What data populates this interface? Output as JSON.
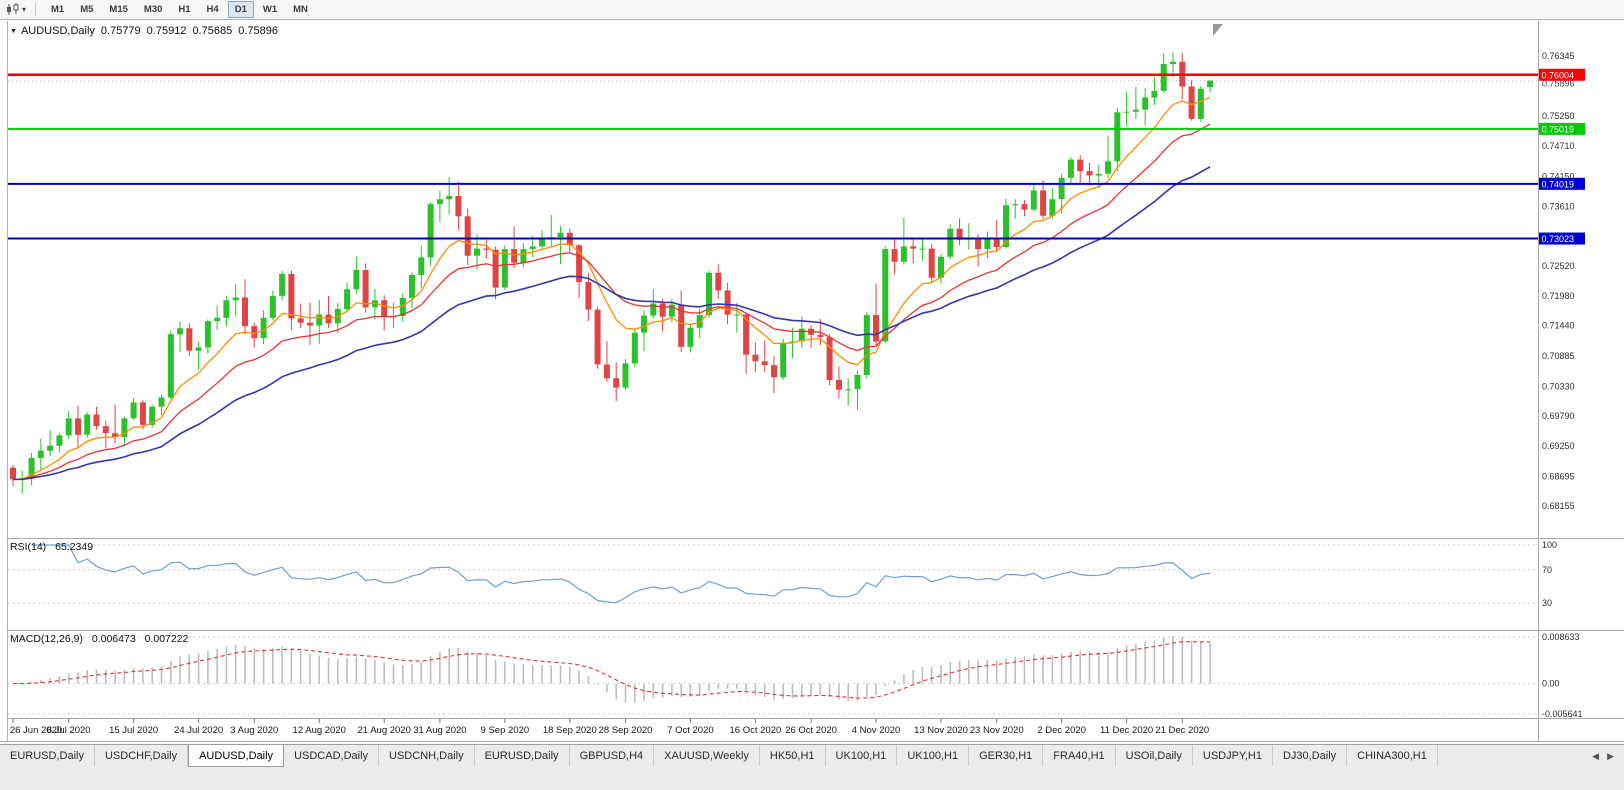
{
  "toolbar": {
    "timeframes": [
      "M1",
      "M5",
      "M15",
      "M30",
      "H1",
      "H4",
      "D1",
      "W1",
      "MN"
    ],
    "active_timeframe": "D1"
  },
  "chart": {
    "title": "AUDUSD,Daily",
    "ohlc": {
      "open": "0.75779",
      "high": "0.75912",
      "low": "0.75685",
      "close": "0.75896"
    },
    "current_price": "0.75896"
  },
  "rsi": {
    "label": "RSI(14)",
    "value": "65.2349"
  },
  "macd": {
    "label": "MACD(12,26,9)",
    "values": [
      "0.006473",
      "0.007222"
    ]
  },
  "chart_data": {
    "type": "candlestick",
    "symbol": "AUDUSD",
    "timeframe": "Daily",
    "y_axis": {
      "min": 0.67591,
      "max": 0.76855,
      "ticks": [
        0.76345,
        0.7525,
        0.7471,
        0.7415,
        0.7361,
        0.7252,
        0.7198,
        0.7144,
        0.70885,
        0.7033,
        0.6979,
        0.6925,
        0.68695,
        0.68155
      ]
    },
    "x_axis": {
      "date_ticks": [
        {
          "i": 0,
          "label": "26 Jun 2020"
        },
        {
          "i": 6,
          "label": "6 Jul 2020"
        },
        {
          "i": 13,
          "label": "15 Jul 2020"
        },
        {
          "i": 20,
          "label": "24 Jul 2020"
        },
        {
          "i": 26,
          "label": "3 Aug 2020"
        },
        {
          "i": 33,
          "label": "12 Aug 2020"
        },
        {
          "i": 40,
          "label": "21 Aug 2020"
        },
        {
          "i": 46,
          "label": "31 Aug 2020"
        },
        {
          "i": 53,
          "label": "9 Sep 2020"
        },
        {
          "i": 60,
          "label": "18 Sep 2020"
        },
        {
          "i": 66,
          "label": "28 Sep 2020"
        },
        {
          "i": 73,
          "label": "7 Oct 2020"
        },
        {
          "i": 80,
          "label": "16 Oct 2020"
        },
        {
          "i": 86,
          "label": "26 Oct 2020"
        },
        {
          "i": 93,
          "label": "4 Nov 2020"
        },
        {
          "i": 100,
          "label": "13 Nov 2020"
        },
        {
          "i": 106,
          "label": "23 Nov 2020"
        },
        {
          "i": 113,
          "label": "2 Dec 2020"
        },
        {
          "i": 120,
          "label": "11 Dec 2020"
        },
        {
          "i": 126,
          "label": "21 Dec 2020"
        }
      ]
    },
    "candles": [
      [
        0.6885,
        0.689,
        0.6852,
        0.6864
      ],
      [
        0.6864,
        0.688,
        0.6838,
        0.6866
      ],
      [
        0.6866,
        0.6912,
        0.6853,
        0.6903
      ],
      [
        0.6903,
        0.6938,
        0.688,
        0.6916
      ],
      [
        0.6916,
        0.6954,
        0.6906,
        0.6925
      ],
      [
        0.6925,
        0.6949,
        0.6913,
        0.6944
      ],
      [
        0.6944,
        0.6988,
        0.6937,
        0.6975
      ],
      [
        0.6975,
        0.6998,
        0.6922,
        0.6945
      ],
      [
        0.6945,
        0.6986,
        0.694,
        0.6982
      ],
      [
        0.6982,
        0.6996,
        0.6954,
        0.6961
      ],
      [
        0.6961,
        0.6971,
        0.692,
        0.6948
      ],
      [
        0.6948,
        0.7,
        0.693,
        0.6941
      ],
      [
        0.6941,
        0.6978,
        0.6924,
        0.6975
      ],
      [
        0.6975,
        0.7012,
        0.6972,
        0.7004
      ],
      [
        0.7004,
        0.7009,
        0.6955,
        0.6963
      ],
      [
        0.6963,
        0.7,
        0.6958,
        0.6996
      ],
      [
        0.6996,
        0.7018,
        0.6981,
        0.7013
      ],
      [
        0.7013,
        0.7135,
        0.701,
        0.7128
      ],
      [
        0.7128,
        0.7152,
        0.7096,
        0.7139
      ],
      [
        0.7139,
        0.7148,
        0.7089,
        0.7098
      ],
      [
        0.7098,
        0.7115,
        0.7063,
        0.7104
      ],
      [
        0.7104,
        0.7155,
        0.7093,
        0.7152
      ],
      [
        0.7152,
        0.718,
        0.7136,
        0.7158
      ],
      [
        0.7158,
        0.7197,
        0.7142,
        0.719
      ],
      [
        0.719,
        0.7219,
        0.7161,
        0.7195
      ],
      [
        0.7195,
        0.7228,
        0.7128,
        0.7143
      ],
      [
        0.7143,
        0.7149,
        0.7104,
        0.7121
      ],
      [
        0.7121,
        0.7172,
        0.711,
        0.7158
      ],
      [
        0.7158,
        0.7208,
        0.7153,
        0.7198
      ],
      [
        0.7198,
        0.7243,
        0.719,
        0.7238
      ],
      [
        0.7238,
        0.7244,
        0.7136,
        0.7157
      ],
      [
        0.7157,
        0.7184,
        0.7139,
        0.7149
      ],
      [
        0.7149,
        0.7185,
        0.7109,
        0.7144
      ],
      [
        0.7144,
        0.7191,
        0.7111,
        0.7164
      ],
      [
        0.7164,
        0.7198,
        0.714,
        0.7148
      ],
      [
        0.7148,
        0.7185,
        0.713,
        0.7174
      ],
      [
        0.7174,
        0.7222,
        0.7168,
        0.721
      ],
      [
        0.721,
        0.7269,
        0.7202,
        0.7245
      ],
      [
        0.7245,
        0.7257,
        0.7167,
        0.7177
      ],
      [
        0.7177,
        0.7211,
        0.7155,
        0.719
      ],
      [
        0.719,
        0.7199,
        0.7135,
        0.716
      ],
      [
        0.716,
        0.7186,
        0.7139,
        0.7161
      ],
      [
        0.7161,
        0.7202,
        0.7151,
        0.7194
      ],
      [
        0.7194,
        0.7241,
        0.7176,
        0.7236
      ],
      [
        0.7236,
        0.729,
        0.7212,
        0.7268
      ],
      [
        0.7268,
        0.7368,
        0.7252,
        0.7365
      ],
      [
        0.7365,
        0.7389,
        0.7332,
        0.7374
      ],
      [
        0.7374,
        0.7414,
        0.7347,
        0.738
      ],
      [
        0.738,
        0.7406,
        0.7318,
        0.7343
      ],
      [
        0.7343,
        0.7357,
        0.7254,
        0.7271
      ],
      [
        0.7271,
        0.731,
        0.7245,
        0.7284
      ],
      [
        0.7284,
        0.73,
        0.7265,
        0.7282
      ],
      [
        0.7282,
        0.7288,
        0.7192,
        0.7213
      ],
      [
        0.7213,
        0.729,
        0.7209,
        0.7283
      ],
      [
        0.7283,
        0.7324,
        0.7248,
        0.7258
      ],
      [
        0.7258,
        0.7294,
        0.725,
        0.7283
      ],
      [
        0.7283,
        0.7307,
        0.7268,
        0.7288
      ],
      [
        0.7288,
        0.7317,
        0.7282,
        0.7304
      ],
      [
        0.7304,
        0.7345,
        0.7286,
        0.7305
      ],
      [
        0.7305,
        0.7325,
        0.7256,
        0.7313
      ],
      [
        0.7313,
        0.732,
        0.7277,
        0.729
      ],
      [
        0.729,
        0.7292,
        0.7194,
        0.7223
      ],
      [
        0.7223,
        0.724,
        0.7152,
        0.7173
      ],
      [
        0.7173,
        0.7177,
        0.7065,
        0.7073
      ],
      [
        0.7073,
        0.7116,
        0.7042,
        0.7048
      ],
      [
        0.7048,
        0.7077,
        0.7006,
        0.7031
      ],
      [
        0.7031,
        0.7083,
        0.7027,
        0.7075
      ],
      [
        0.7075,
        0.7137,
        0.7068,
        0.7131
      ],
      [
        0.7131,
        0.7172,
        0.7097,
        0.7162
      ],
      [
        0.7162,
        0.721,
        0.7157,
        0.7184
      ],
      [
        0.7184,
        0.7192,
        0.7133,
        0.716
      ],
      [
        0.716,
        0.7192,
        0.715,
        0.7182
      ],
      [
        0.7182,
        0.7208,
        0.7096,
        0.7105
      ],
      [
        0.7105,
        0.7146,
        0.7095,
        0.714
      ],
      [
        0.714,
        0.7174,
        0.7121,
        0.7163
      ],
      [
        0.7163,
        0.7243,
        0.7158,
        0.724
      ],
      [
        0.724,
        0.7255,
        0.7193,
        0.7208
      ],
      [
        0.7208,
        0.7222,
        0.7146,
        0.7164
      ],
      [
        0.7164,
        0.7185,
        0.7131,
        0.7164
      ],
      [
        0.7164,
        0.7167,
        0.7056,
        0.7091
      ],
      [
        0.7091,
        0.7113,
        0.706,
        0.7079
      ],
      [
        0.7079,
        0.7117,
        0.7059,
        0.7072
      ],
      [
        0.7072,
        0.7088,
        0.7021,
        0.705
      ],
      [
        0.705,
        0.712,
        0.7045,
        0.7113
      ],
      [
        0.7113,
        0.714,
        0.7085,
        0.7115
      ],
      [
        0.7115,
        0.716,
        0.7103,
        0.7138
      ],
      [
        0.7138,
        0.7145,
        0.7103,
        0.7127
      ],
      [
        0.7127,
        0.7156,
        0.7108,
        0.7123
      ],
      [
        0.7123,
        0.7128,
        0.7035,
        0.7045
      ],
      [
        0.7045,
        0.707,
        0.7011,
        0.7027
      ],
      [
        0.7027,
        0.7048,
        0.6998,
        0.7028
      ],
      [
        0.7028,
        0.7062,
        0.6991,
        0.7054
      ],
      [
        0.7054,
        0.7168,
        0.7048,
        0.7163
      ],
      [
        0.7163,
        0.7221,
        0.7108,
        0.7115
      ],
      [
        0.7115,
        0.7288,
        0.7112,
        0.7283
      ],
      [
        0.7283,
        0.73,
        0.7237,
        0.726
      ],
      [
        0.726,
        0.734,
        0.7255,
        0.7288
      ],
      [
        0.7288,
        0.7302,
        0.7257,
        0.7284
      ],
      [
        0.7284,
        0.7301,
        0.7262,
        0.7284
      ],
      [
        0.7284,
        0.7292,
        0.7221,
        0.7231
      ],
      [
        0.7231,
        0.7274,
        0.722,
        0.7269
      ],
      [
        0.7269,
        0.7328,
        0.7265,
        0.732
      ],
      [
        0.732,
        0.7339,
        0.729,
        0.73
      ],
      [
        0.73,
        0.733,
        0.7282,
        0.7304
      ],
      [
        0.7304,
        0.731,
        0.7251,
        0.7283
      ],
      [
        0.7283,
        0.7315,
        0.7267,
        0.7303
      ],
      [
        0.7303,
        0.7336,
        0.7279,
        0.7287
      ],
      [
        0.7287,
        0.7375,
        0.7284,
        0.7363
      ],
      [
        0.7363,
        0.7374,
        0.7338,
        0.7365
      ],
      [
        0.7365,
        0.7373,
        0.7343,
        0.7355
      ],
      [
        0.7355,
        0.7404,
        0.7352,
        0.739
      ],
      [
        0.739,
        0.7408,
        0.7338,
        0.7344
      ],
      [
        0.7344,
        0.7394,
        0.7338,
        0.7374
      ],
      [
        0.7374,
        0.742,
        0.7348,
        0.7413
      ],
      [
        0.7413,
        0.745,
        0.7401,
        0.7446
      ],
      [
        0.7446,
        0.7454,
        0.7401,
        0.7425
      ],
      [
        0.7425,
        0.744,
        0.7399,
        0.7417
      ],
      [
        0.7417,
        0.7437,
        0.7394,
        0.742
      ],
      [
        0.742,
        0.749,
        0.7412,
        0.7443
      ],
      [
        0.7443,
        0.754,
        0.7425,
        0.7532
      ],
      [
        0.7532,
        0.757,
        0.7506,
        0.7533
      ],
      [
        0.7533,
        0.7578,
        0.752,
        0.7537
      ],
      [
        0.7537,
        0.7576,
        0.7508,
        0.7559
      ],
      [
        0.7559,
        0.7596,
        0.7545,
        0.7571
      ],
      [
        0.7571,
        0.7639,
        0.7568,
        0.762
      ],
      [
        0.762,
        0.7642,
        0.7596,
        0.7624
      ],
      [
        0.7624,
        0.764,
        0.7556,
        0.7579
      ],
      [
        0.7579,
        0.759,
        0.7517,
        0.752
      ],
      [
        0.752,
        0.758,
        0.7515,
        0.7575
      ],
      [
        0.75779,
        0.75912,
        0.75685,
        0.75896
      ]
    ],
    "moving_averages": [
      {
        "name": "fast",
        "period": 9,
        "color": "#ff8d00"
      },
      {
        "name": "medium",
        "period": 18,
        "color": "#e83333"
      },
      {
        "name": "slow",
        "period": 34,
        "color": "#3535ae"
      }
    ],
    "horizontal_lines": [
      {
        "price": 0.76004,
        "color": "#ff0000",
        "width": 2.4
      },
      {
        "price": 0.75019,
        "color": "#00cb00",
        "width": 2
      },
      {
        "price": 0.74019,
        "color": "#0000cd",
        "width": 2
      },
      {
        "price": 0.73023,
        "color": "#0000cd",
        "width": 2
      }
    ],
    "rsi_panel": {
      "period": 14,
      "color": "#6f9fd8",
      "levels": [
        {
          "v": 100,
          "label": "100"
        },
        {
          "v": 70,
          "label": "70"
        },
        {
          "v": 30,
          "label": "30"
        }
      ]
    },
    "macd_panel": {
      "fast": 12,
      "slow": 26,
      "signal": 9,
      "hist_color": "#bdbdbd",
      "signal_color": "#e03030",
      "ticks": [
        {
          "v": 0.008633,
          "label": "0.008633"
        },
        {
          "v": 0,
          "label": "0.00"
        },
        {
          "v": -0.005641,
          "label": "-0.005641"
        }
      ]
    },
    "colors": {
      "bull": "#2cc12c",
      "bear": "#e04545"
    }
  },
  "tabs": {
    "items": [
      "EURUSD,Daily",
      "USDCHF,Daily",
      "AUDUSD,Daily",
      "USDCAD,Daily",
      "USDCNH,Daily",
      "EURUSD,Daily",
      "GBPUSD,H4",
      "XAUUSD,Weekly",
      "HK50,H1",
      "UK100,H1",
      "UK100,H1",
      "GER30,H1",
      "FRA40,H1",
      "USOil,Daily",
      "USDJPY,H1",
      "DJ30,Daily",
      "CHINA300,H1"
    ],
    "active_index": 2
  }
}
